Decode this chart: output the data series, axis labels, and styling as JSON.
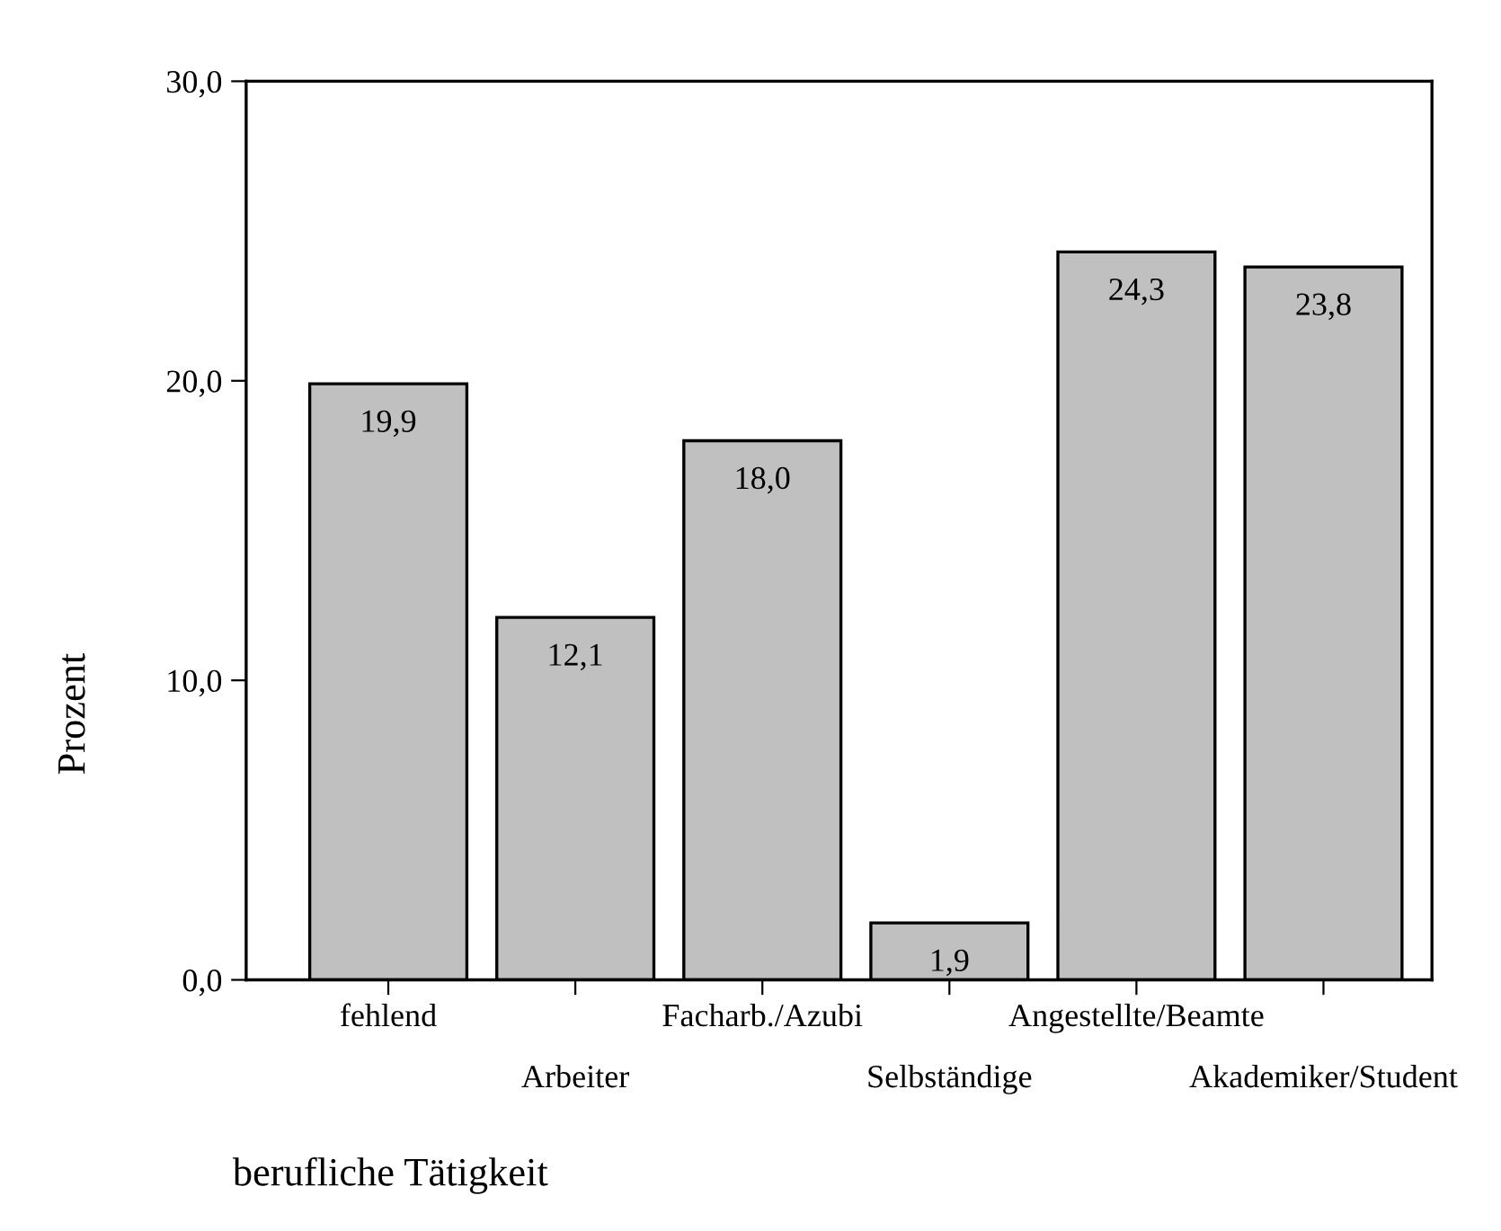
{
  "chart_data": {
    "type": "bar",
    "xlabel": "berufliche Tätigkeit",
    "ylabel": "Prozent",
    "categories": [
      "fehlend",
      "Arbeiter",
      "Facharb./Azubi",
      "Selbständige",
      "Angestellte/Beamte",
      "Akademiker/Student"
    ],
    "values": [
      19.9,
      12.1,
      18.0,
      1.9,
      24.3,
      23.8
    ],
    "value_labels": [
      "19,9",
      "12,1",
      "18,0",
      "1,9",
      "24,3",
      "23,8"
    ],
    "color": "#c0c0c0",
    "ylim": [
      0,
      30
    ],
    "yticks": [
      {
        "value": 0,
        "label": "0,0"
      },
      {
        "value": 10,
        "label": "10,0"
      },
      {
        "value": 20,
        "label": "20,0"
      },
      {
        "value": 30,
        "label": "30,0"
      }
    ],
    "grid": false,
    "legend": false
  }
}
